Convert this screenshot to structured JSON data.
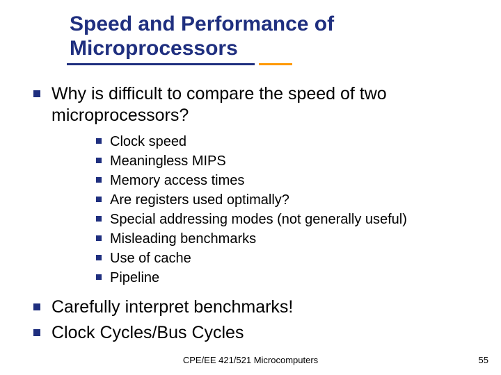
{
  "colors": {
    "title": "#1f2f7f",
    "accent_long": "#1f2f7f",
    "accent_short": "#ff9900",
    "bullet": "#1f2f7f",
    "text": "#000000",
    "background": "#ffffff"
  },
  "title": "Speed and Performance of Microprocessors",
  "level1": [
    "Why is difficult to compare the speed of two microprocessors?"
  ],
  "level2": [
    "Clock speed",
    "Meaningless MIPS",
    "Memory access times",
    "Are registers used optimally?",
    "Special addressing modes (not generally useful)",
    "Misleading benchmarks",
    "Use of cache",
    "Pipeline"
  ],
  "level1b": [
    "Carefully interpret benchmarks!",
    "Clock Cycles/Bus Cycles"
  ],
  "footer": "CPE/EE 421/521 Microcomputers",
  "page": "55"
}
